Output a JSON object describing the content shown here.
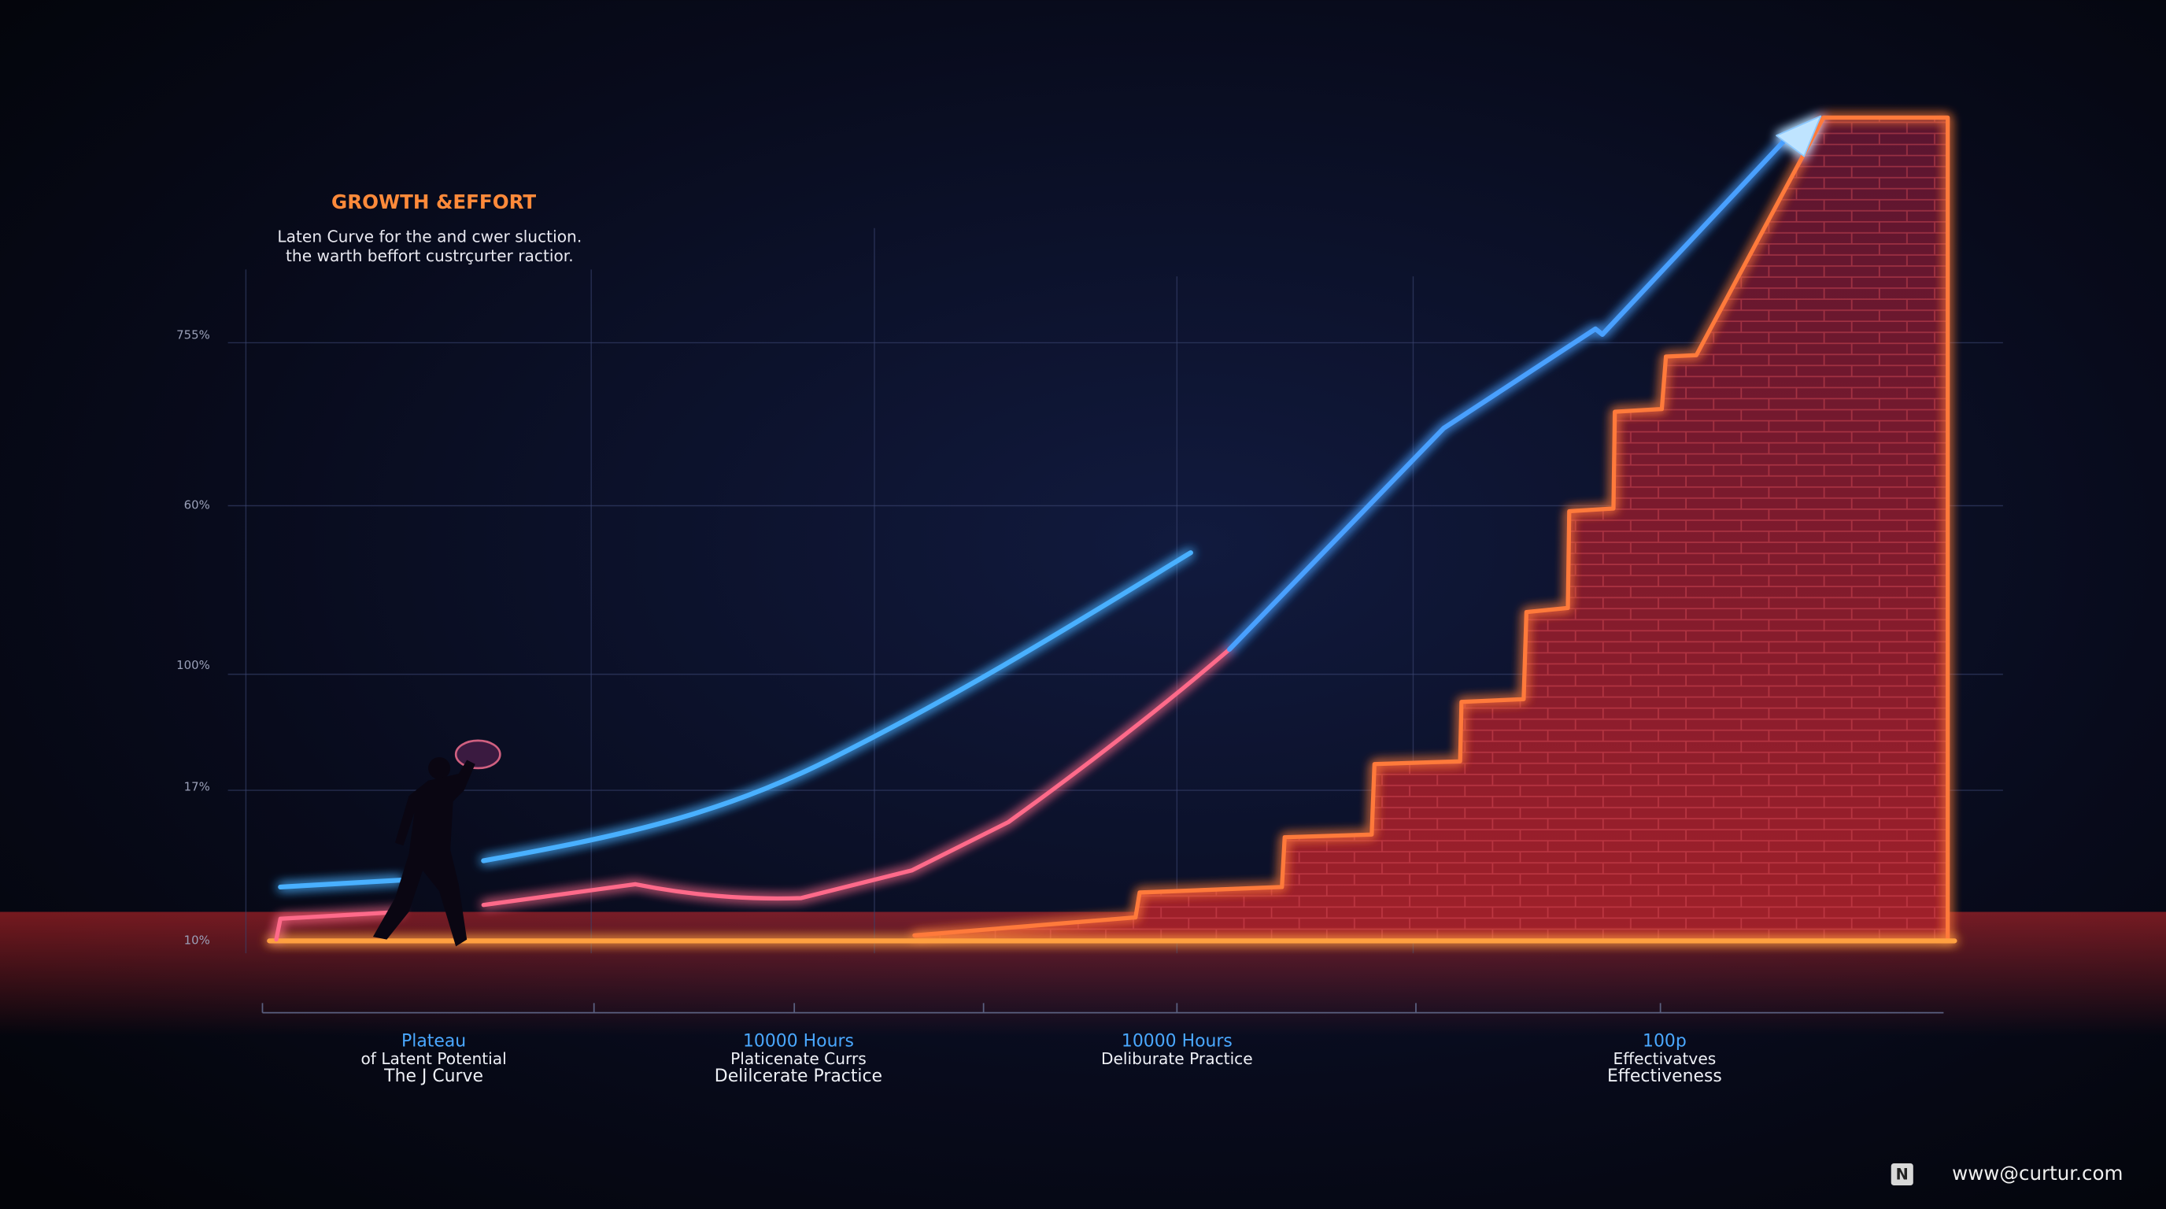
{
  "header": {
    "title": "GROWTH &EFFORT",
    "subtitle": [
      "Laten Curve for the and cwer sluction.",
      "the warth beffort custrçurter ractior."
    ]
  },
  "y_labels": [
    "755%",
    "60%",
    "100%",
    "17%",
    "10%"
  ],
  "stages": [
    {
      "heading": "Plateau",
      "lines": [
        "of Latent Potential",
        "The  J Curve"
      ]
    },
    {
      "heading": "10000 Hours",
      "lines": [
        "Platicenate Currs",
        "Delilcerate Practice"
      ]
    },
    {
      "heading": "10000 Hours",
      "lines": [
        "Deliburate Practice"
      ]
    },
    {
      "heading": "100p",
      "lines": [
        "Effectivatves",
        "Effectiveness"
      ]
    }
  ],
  "watermark": {
    "icon": "N",
    "text": "www@curtur.com"
  }
}
